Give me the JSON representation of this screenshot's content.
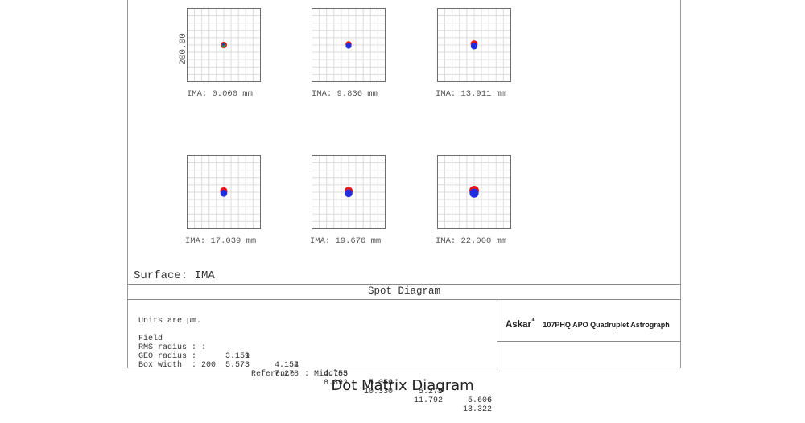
{
  "diagram": {
    "scale_label": "200.00",
    "panels": [
      {
        "ima": "IMA: 0.000 mm",
        "spot": "small"
      },
      {
        "ima": "IMA: 9.836 mm",
        "spot": "small"
      },
      {
        "ima": "IMA: 13.911 mm",
        "spot": "medium"
      },
      {
        "ima": "IMA: 17.039 mm",
        "spot": "medium"
      },
      {
        "ima": "IMA: 19.676 mm",
        "spot": "medium"
      },
      {
        "ima": "IMA: 22.000 mm",
        "spot": "large"
      }
    ],
    "surface_label": "Surface: IMA",
    "title": "Spot Diagram",
    "colors": {
      "red": "#e8161b",
      "blue": "#1f2fe0",
      "green": "#2a9d3a"
    }
  },
  "table": {
    "units": "Units are µm.",
    "field_label": "Field",
    "rms_label": "RMS radius :",
    "geo_label": "GEO radius :",
    "fields": [
      "1",
      "2",
      "3",
      "4",
      "5",
      "6"
    ],
    "rms": [
      "3.159",
      "4.154",
      "4.755",
      "5.059",
      "5.279",
      "5.606"
    ],
    "geo": [
      "5.573",
      "7.278",
      "8.892",
      "10.330",
      "11.792",
      "13.322"
    ],
    "box_width": "Box width  : 200",
    "reference": "Reference  : Middle"
  },
  "brand": {
    "name": "Askar",
    "superscript": "⁴",
    "model": "107PHQ APO Quadruplet Astrograph"
  },
  "caption": "Dot Matrix Diagram"
}
